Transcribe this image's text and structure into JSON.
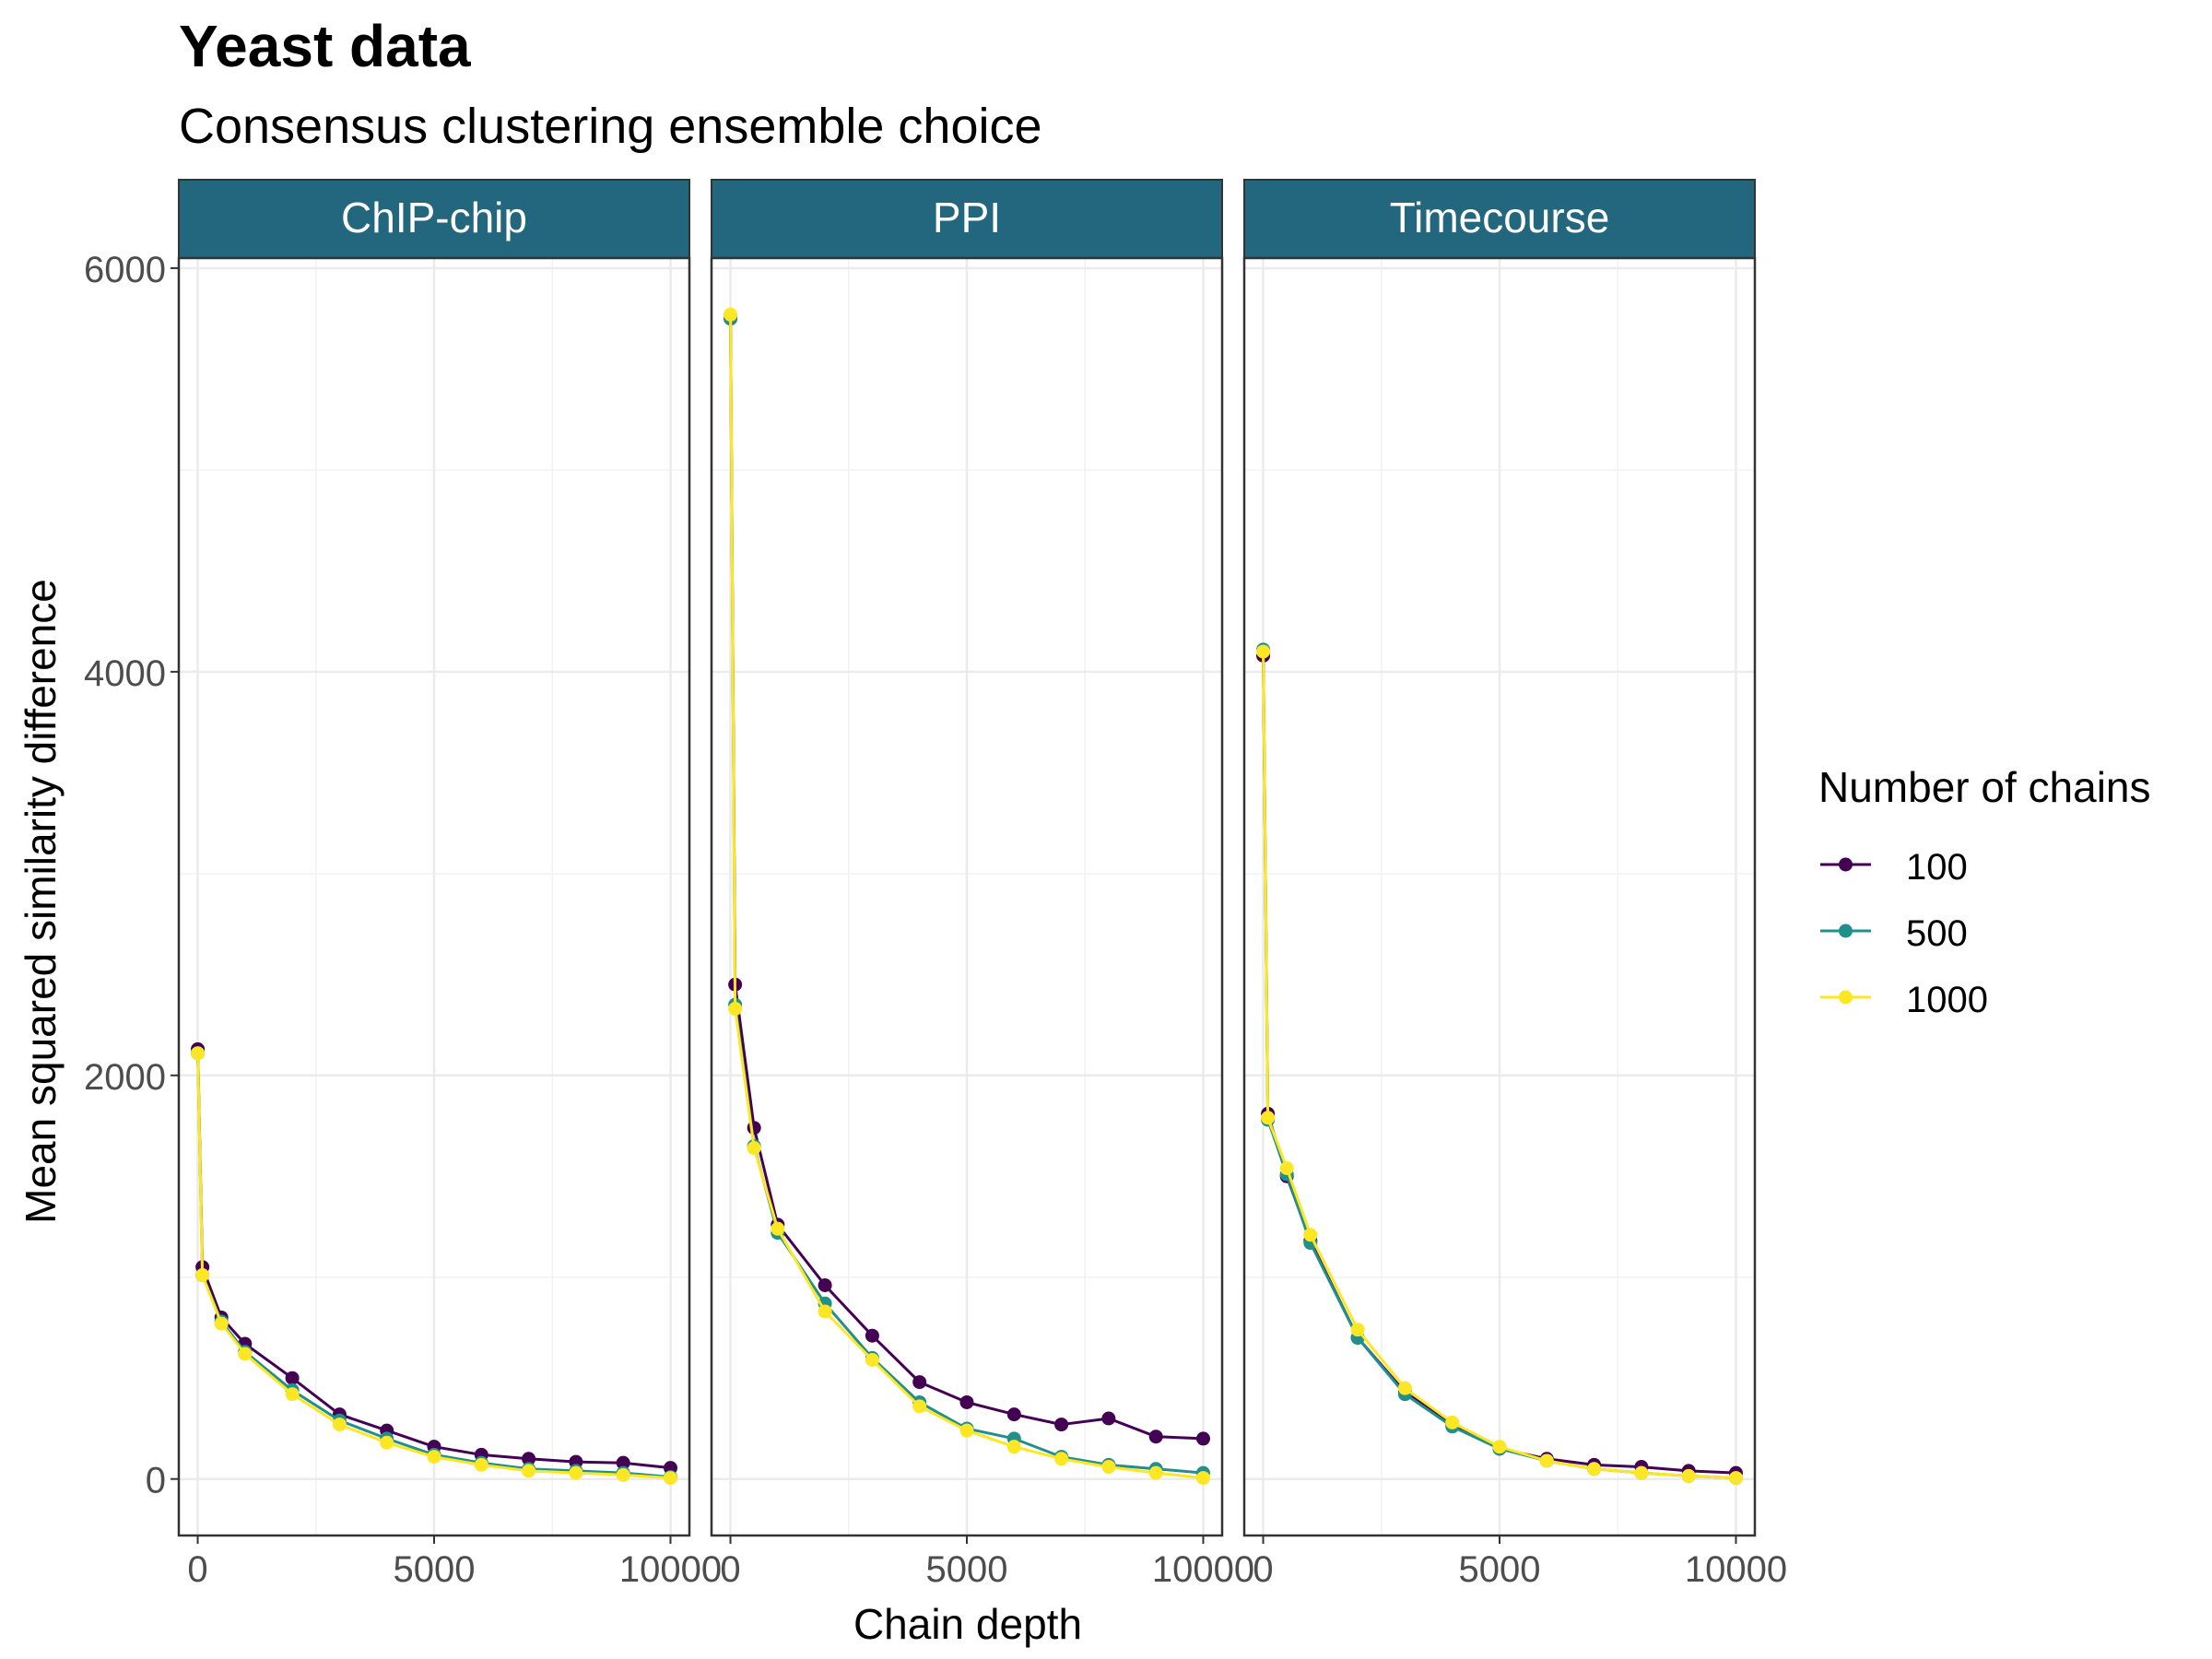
{
  "chart_data": {
    "type": "line",
    "title": "Yeast data",
    "subtitle": "Consensus clustering ensemble choice",
    "xlabel": "Chain depth",
    "ylabel": "Mean squared similarity difference",
    "xlim": [
      -400,
      10400
    ],
    "ylim": [
      -280,
      6050
    ],
    "x_ticks": [
      0,
      5000,
      10000
    ],
    "x_tick_labels": [
      "0",
      "5000",
      "10000"
    ],
    "y_ticks": [
      0,
      2000,
      4000,
      6000
    ],
    "y_tick_labels": [
      "0",
      "2000",
      "4000",
      "6000"
    ],
    "grid": true,
    "legend": {
      "title": "Number of chains",
      "placement": "right",
      "entries": [
        "100",
        "500",
        "1000"
      ]
    },
    "colors": {
      "100": "#440154",
      "500": "#21908C",
      "1000": "#FDE725",
      "strip": "#22677E"
    },
    "panels": [
      {
        "name": "ChIP-chip",
        "series": [
          {
            "name": "100",
            "x": [
              1,
              100,
              500,
              1000,
              2000,
              3000,
              4000,
              5000,
              6000,
              7000,
              8000,
              9000,
              10000
            ],
            "y": [
              2130,
              1050,
              800,
              670,
              500,
              320,
              240,
              160,
              120,
              100,
              85,
              80,
              55
            ]
          },
          {
            "name": "500",
            "x": [
              1,
              100,
              500,
              1000,
              2000,
              3000,
              4000,
              5000,
              6000,
              7000,
              8000,
              9000,
              10000
            ],
            "y": [
              2110,
              1010,
              780,
              630,
              440,
              290,
              200,
              120,
              80,
              50,
              40,
              30,
              10
            ]
          },
          {
            "name": "1000",
            "x": [
              1,
              100,
              500,
              1000,
              2000,
              3000,
              4000,
              5000,
              6000,
              7000,
              8000,
              9000,
              10000
            ],
            "y": [
              2110,
              1010,
              770,
              620,
              420,
              270,
              180,
              110,
              70,
              40,
              30,
              20,
              5
            ]
          }
        ]
      },
      {
        "name": "PPI",
        "series": [
          {
            "name": "100",
            "x": [
              1,
              100,
              500,
              1000,
              2000,
              3000,
              4000,
              5000,
              6000,
              7000,
              8000,
              9000,
              10000
            ],
            "y": [
              5750,
              2450,
              1740,
              1260,
              960,
              710,
              480,
              380,
              320,
              270,
              300,
              210,
              200
            ]
          },
          {
            "name": "500",
            "x": [
              1,
              100,
              500,
              1000,
              2000,
              3000,
              4000,
              5000,
              6000,
              7000,
              8000,
              9000,
              10000
            ],
            "y": [
              5750,
              2350,
              1650,
              1220,
              870,
              600,
              380,
              250,
              200,
              110,
              70,
              50,
              30
            ]
          },
          {
            "name": "1000",
            "x": [
              1,
              100,
              500,
              1000,
              2000,
              3000,
              4000,
              5000,
              6000,
              7000,
              8000,
              9000,
              10000
            ],
            "y": [
              5770,
              2330,
              1640,
              1240,
              830,
              590,
              360,
              240,
              160,
              100,
              60,
              30,
              5
            ]
          }
        ]
      },
      {
        "name": "Timecourse",
        "series": [
          {
            "name": "100",
            "x": [
              1,
              100,
              500,
              1000,
              2000,
              3000,
              4000,
              5000,
              6000,
              7000,
              8000,
              9000,
              10000
            ],
            "y": [
              4080,
              1810,
              1500,
              1180,
              700,
              430,
              270,
              150,
              100,
              70,
              60,
              40,
              30
            ]
          },
          {
            "name": "500",
            "x": [
              1,
              100,
              500,
              1000,
              2000,
              3000,
              4000,
              5000,
              6000,
              7000,
              8000,
              9000,
              10000
            ],
            "y": [
              4110,
              1780,
              1510,
              1170,
              700,
              420,
              260,
              150,
              90,
              50,
              30,
              15,
              5
            ]
          },
          {
            "name": "1000",
            "x": [
              1,
              100,
              500,
              1000,
              2000,
              3000,
              4000,
              5000,
              6000,
              7000,
              8000,
              9000,
              10000
            ],
            "y": [
              4100,
              1790,
              1540,
              1210,
              740,
              450,
              280,
              160,
              90,
              50,
              30,
              15,
              5
            ]
          }
        ]
      }
    ]
  }
}
